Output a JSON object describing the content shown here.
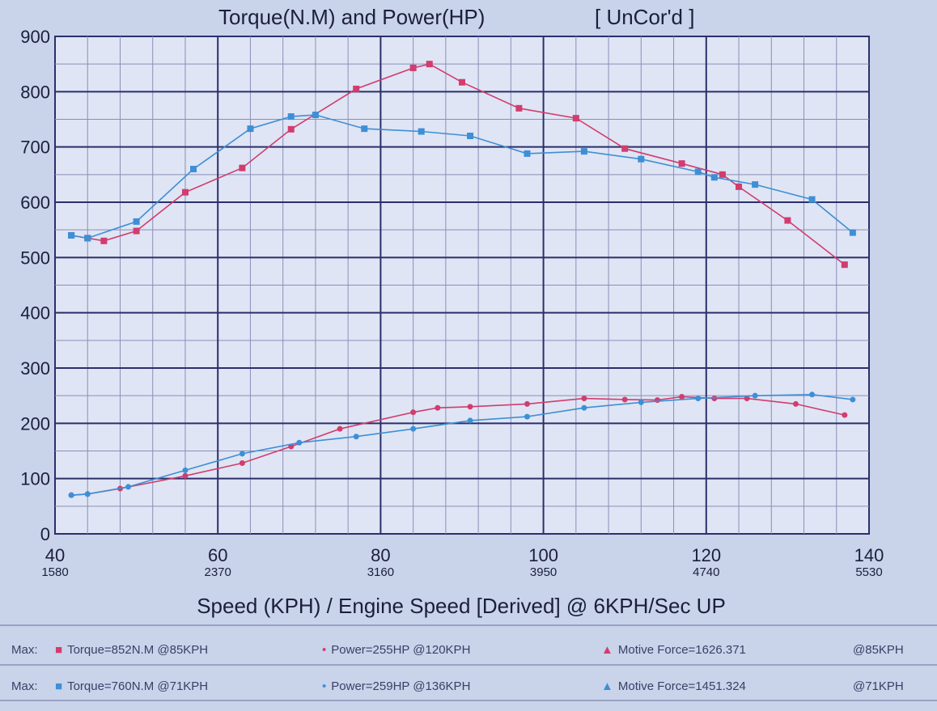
{
  "chart_data": {
    "type": "line",
    "title": "Torque(N.M) and Power(HP)",
    "title_tag": "[ UnCor'd ]",
    "xlabel": "Speed (KPH) / Engine Speed [Derived] @ 6KPH/Sec UP",
    "ylabel": "",
    "xlim": [
      40,
      140
    ],
    "ylim": [
      0,
      900
    ],
    "y_ticks": [
      "0",
      "100",
      "200",
      "300",
      "400",
      "500",
      "600",
      "700",
      "800",
      "900"
    ],
    "x_ticks": [
      {
        "speed": "40",
        "rpm": "1580"
      },
      {
        "speed": "60",
        "rpm": "2370"
      },
      {
        "speed": "80",
        "rpm": "3160"
      },
      {
        "speed": "100",
        "rpm": "3950"
      },
      {
        "speed": "120",
        "rpm": "4740"
      },
      {
        "speed": "140",
        "rpm": "5530"
      }
    ],
    "grid": true,
    "series": [
      {
        "color": "#d23c6e",
        "marker": "square",
        "x": [
          42,
          44,
          46,
          50,
          56,
          63,
          69,
          77,
          84,
          86,
          90,
          97,
          104,
          110,
          117,
          122,
          124,
          130,
          137
        ],
        "y": [
          540,
          535,
          530,
          548,
          618,
          662,
          732,
          805,
          843,
          850,
          817,
          770,
          752,
          697,
          670,
          650,
          628,
          567,
          487
        ]
      },
      {
        "color": "#3d8fd6",
        "marker": "square",
        "x": [
          42,
          44,
          50,
          57,
          64,
          69,
          72,
          78,
          85,
          91,
          98,
          105,
          112,
          119,
          121,
          126,
          133,
          138
        ],
        "y": [
          540,
          535,
          565,
          660,
          733,
          755,
          758,
          733,
          728,
          720,
          688,
          692,
          678,
          655,
          645,
          632,
          605,
          545
        ]
      },
      {
        "color": "#d23c6e",
        "marker": "dot",
        "x": [
          42,
          44,
          48,
          56,
          63,
          69,
          75,
          84,
          87,
          91,
          98,
          105,
          110,
          114,
          117,
          121,
          125,
          131,
          137
        ],
        "y": [
          70,
          72,
          82,
          105,
          128,
          158,
          190,
          220,
          228,
          230,
          235,
          245,
          243,
          242,
          248,
          245,
          245,
          235,
          215
        ]
      },
      {
        "color": "#3d8fd6",
        "marker": "dot",
        "x": [
          42,
          44,
          49,
          56,
          63,
          70,
          77,
          84,
          91,
          98,
          105,
          112,
          119,
          126,
          133,
          138
        ],
        "y": [
          70,
          72,
          85,
          115,
          145,
          165,
          176,
          190,
          205,
          212,
          228,
          238,
          245,
          250,
          252,
          243
        ]
      }
    ]
  },
  "legend": {
    "row1": {
      "max": "Max:",
      "torque": "Torque=852N.M @85KPH",
      "power": "Power=255HP @120KPH",
      "motive": "Motive Force=1626.371",
      "motive_at": "@85KPH",
      "color": "#d23c6e"
    },
    "row2": {
      "max": "Max:",
      "torque": "Torque=760N.M @71KPH",
      "power": "Power=259HP @136KPH",
      "motive": "Motive Force=1451.324",
      "motive_at": "@71KPH",
      "color": "#3d8fd6"
    }
  },
  "colors": {
    "background": "#c9d3ea",
    "grid_major": "#2b2f6a",
    "grid_minor": "#8a8fb8",
    "text": "#1b1f3a"
  }
}
